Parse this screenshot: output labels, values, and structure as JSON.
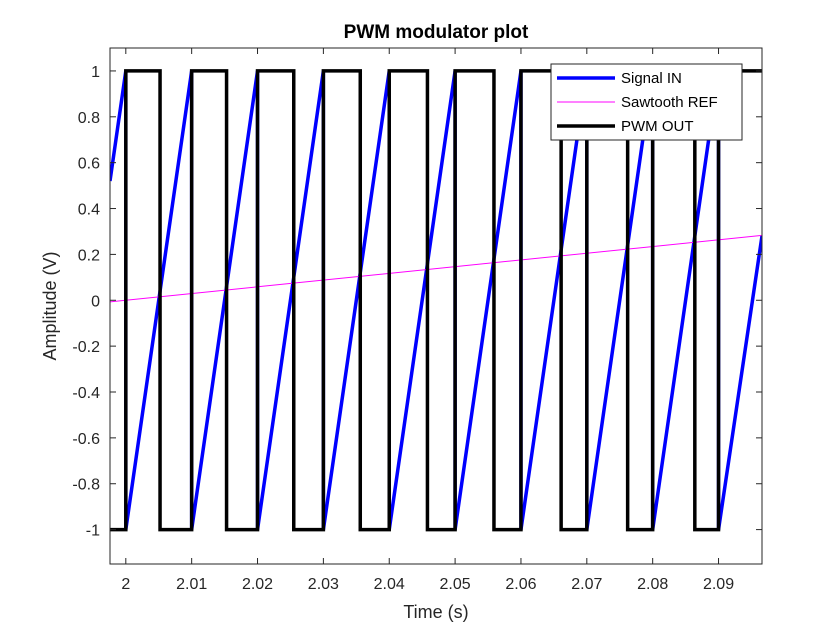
{
  "chart_data": {
    "type": "line",
    "title": "PWM modulator plot",
    "xlabel": "Time (s)",
    "ylabel": "Amplitude (V)",
    "xlim": [
      1.9976,
      2.0966
    ],
    "ylim": [
      -1.15,
      1.1
    ],
    "x_ticks": [
      2,
      2.01,
      2.02,
      2.03,
      2.04,
      2.05,
      2.06,
      2.07,
      2.08,
      2.09
    ],
    "x_tick_labels": [
      "2",
      "2.01",
      "2.02",
      "2.03",
      "2.04",
      "2.05",
      "2.06",
      "2.07",
      "2.08",
      "2.09"
    ],
    "y_ticks": [
      1,
      0.8,
      0.6,
      0.4,
      0.2,
      0,
      -0.2,
      -0.4,
      -0.6,
      -0.8,
      -1
    ],
    "y_tick_labels": [
      "1",
      "0.8",
      "0.6",
      "0.4",
      "0.2",
      "0",
      "-0.2",
      "-0.4",
      "-0.6",
      "-0.8",
      "-1"
    ],
    "grid": false,
    "box": true,
    "legend_position": "top-right",
    "series": [
      {
        "name": "Signal IN",
        "color": "#0000ff",
        "line_width": 3.5,
        "x": [
          1.9976,
          2.0,
          2.0,
          2.01,
          2.01,
          2.02,
          2.02,
          2.03,
          2.03,
          2.04,
          2.04,
          2.05,
          2.05,
          2.06,
          2.06,
          2.07,
          2.07,
          2.08,
          2.08,
          2.09,
          2.09,
          2.0966
        ],
        "y": [
          0.52,
          1,
          -1,
          1,
          -1,
          1,
          -1,
          1,
          -1,
          1,
          -1,
          1,
          -1,
          1,
          -1,
          1,
          -1,
          1,
          -1,
          1,
          -1,
          0.28
        ]
      },
      {
        "name": "Sawtooth REF",
        "color": "#ff00ff",
        "line_width": 1,
        "x": [
          1.9976,
          2.0966
        ],
        "y": [
          -0.007,
          0.283
        ]
      },
      {
        "name": "PWM OUT",
        "color": "#000000",
        "line_width": 3.5,
        "x": [
          1.9976,
          2.0,
          2.0,
          2.0052,
          2.0052,
          2.01,
          2.01,
          2.0153,
          2.0153,
          2.02,
          2.02,
          2.0255,
          2.0255,
          2.03,
          2.03,
          2.0356,
          2.0356,
          2.04,
          2.04,
          2.0458,
          2.0458,
          2.05,
          2.05,
          2.0559,
          2.0559,
          2.06,
          2.06,
          2.0661,
          2.0661,
          2.07,
          2.07,
          2.0762,
          2.0762,
          2.08,
          2.08,
          2.0864,
          2.0864,
          2.09,
          2.09,
          2.0966
        ],
        "y": [
          -1,
          -1,
          1,
          1,
          -1,
          -1,
          1,
          1,
          -1,
          -1,
          1,
          1,
          -1,
          -1,
          1,
          1,
          -1,
          -1,
          1,
          1,
          -1,
          -1,
          1,
          1,
          -1,
          -1,
          1,
          1,
          -1,
          -1,
          1,
          1,
          -1,
          -1,
          1,
          1,
          -1,
          -1,
          1,
          1
        ]
      }
    ]
  }
}
